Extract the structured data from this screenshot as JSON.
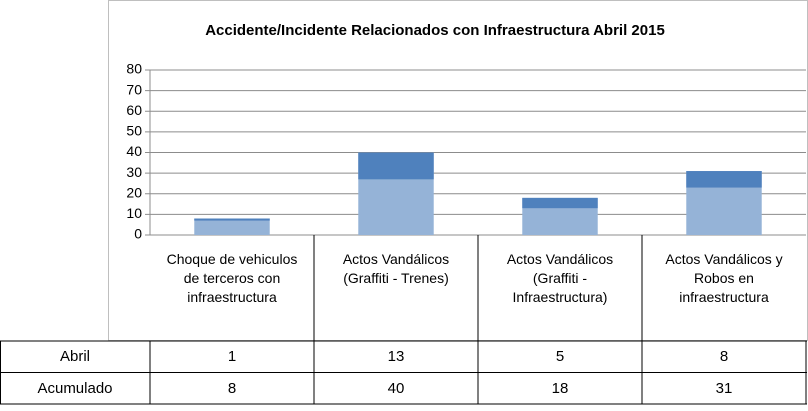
{
  "chart_data": {
    "type": "bar",
    "title": "Accidente/Incidente Relacionados con Infraestructura Abril 2015",
    "categories": [
      "Choque de vehiculos de terceros con infraestructura",
      "Actos Vandálicos (Graffiti - Trenes)",
      "Actos Vandálicos (Graffiti - Infraestructura)",
      "Actos Vandálicos y Robos en infraestructura"
    ],
    "series": [
      {
        "name": "Abril",
        "color": "#4f81bd",
        "values": [
          1,
          13,
          5,
          8
        ]
      },
      {
        "name": "Acumulado",
        "color": "#95b3d7",
        "values": [
          8,
          40,
          18,
          31
        ]
      }
    ],
    "ylim": [
      0,
      80
    ],
    "yticks": [
      0,
      10,
      20,
      30,
      40,
      50,
      60,
      70,
      80
    ],
    "grid": true
  }
}
